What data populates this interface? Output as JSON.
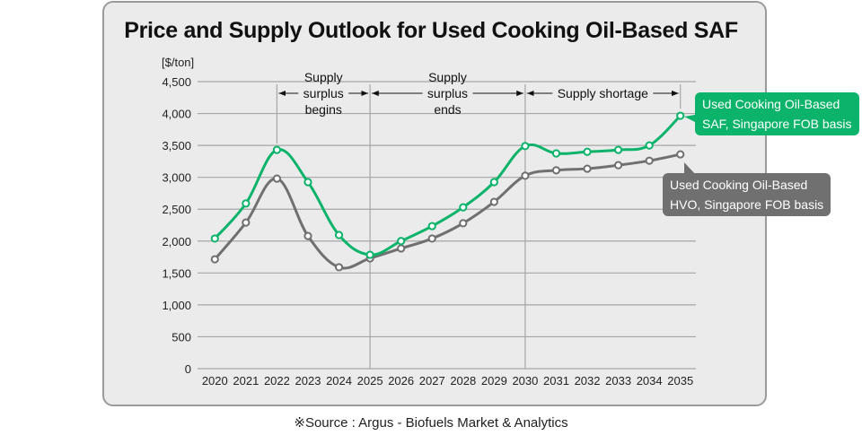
{
  "chart_data": {
    "type": "line",
    "title": "Price and Supply Outlook for Used Cooking Oil-Based SAF",
    "ylabel": "[$/ton]",
    "xlabel": "",
    "ylim": [
      0,
      4500
    ],
    "yticks": [
      0,
      500,
      1000,
      1500,
      2000,
      2500,
      3000,
      3500,
      4000,
      4500
    ],
    "ytick_labels": [
      "0",
      "500",
      "1,000",
      "1,500",
      "2,000",
      "2,500",
      "3,000",
      "3,500",
      "4,000",
      "4,500"
    ],
    "grid": true,
    "x": [
      "2020",
      "2021",
      "2022",
      "2023",
      "2024",
      "2025",
      "2026",
      "2027",
      "2028",
      "2029",
      "2030",
      "2031",
      "2032",
      "2033",
      "2034",
      "2035"
    ],
    "series": [
      {
        "name": "Used Cooking Oil-Based SAF, Singapore FOB basis",
        "label_lines": [
          "Used Cooking Oil-Based",
          "SAF, Singapore FOB basis"
        ],
        "color": "#0cb36a",
        "values": [
          2040,
          2590,
          3430,
          2925,
          2095,
          1785,
          2000,
          2235,
          2530,
          2925,
          3490,
          3375,
          3400,
          3430,
          3500,
          3965
        ]
      },
      {
        "name": "Used Cooking Oil-Based HVO, Singapore FOB basis",
        "label_lines": [
          "Used Cooking Oil-Based",
          "HVO, Singapore FOB basis"
        ],
        "color": "#707070",
        "values": [
          1715,
          2290,
          2980,
          2080,
          1590,
          1730,
          1885,
          2040,
          2280,
          2615,
          3025,
          3110,
          3135,
          3190,
          3260,
          3360
        ]
      }
    ],
    "annotations": [
      {
        "text_lines": [
          "Supply",
          "surplus",
          "begins"
        ],
        "from": "2022",
        "to": "2025"
      },
      {
        "text_lines": [
          "Supply",
          "surplus",
          "ends"
        ],
        "from": "2025",
        "to": "2030"
      },
      {
        "text_lines": [
          "Supply shortage"
        ],
        "from": "2030",
        "to": "2035"
      }
    ],
    "legend": "callouts at right end of each series"
  },
  "source": "※Source : Argus - Biofuels Market & Analytics"
}
